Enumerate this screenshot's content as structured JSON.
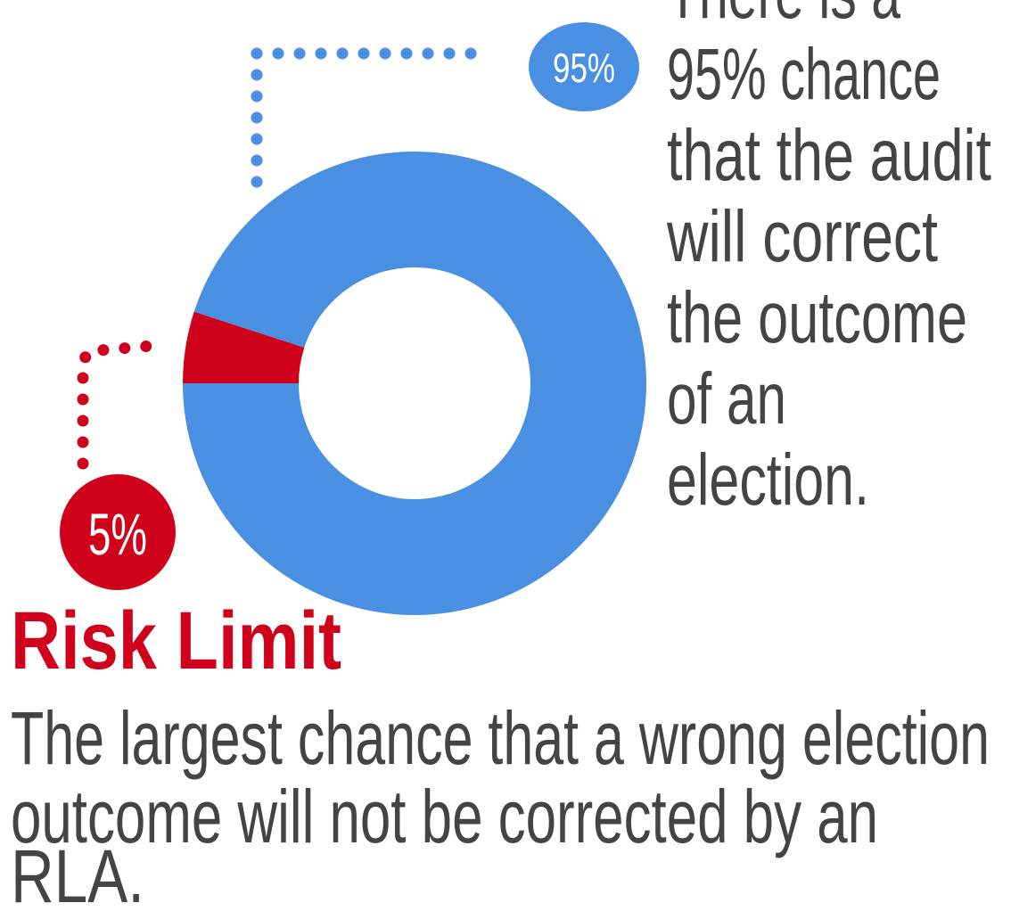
{
  "chart_data": {
    "type": "pie",
    "donut": true,
    "values": [
      5,
      95
    ],
    "value_labels": [
      "5%",
      "95%"
    ],
    "colors": [
      "#d0021b",
      "#4a90e2"
    ],
    "annotation_lines": [
      "There is a",
      "95% chance",
      "that the audit",
      "will correct",
      "the outcome",
      "of an",
      "election."
    ],
    "title": "Risk Limit",
    "description_lines": [
      "The largest chance that a wrong election",
      "outcome will not be corrected by an",
      "RLA."
    ]
  }
}
